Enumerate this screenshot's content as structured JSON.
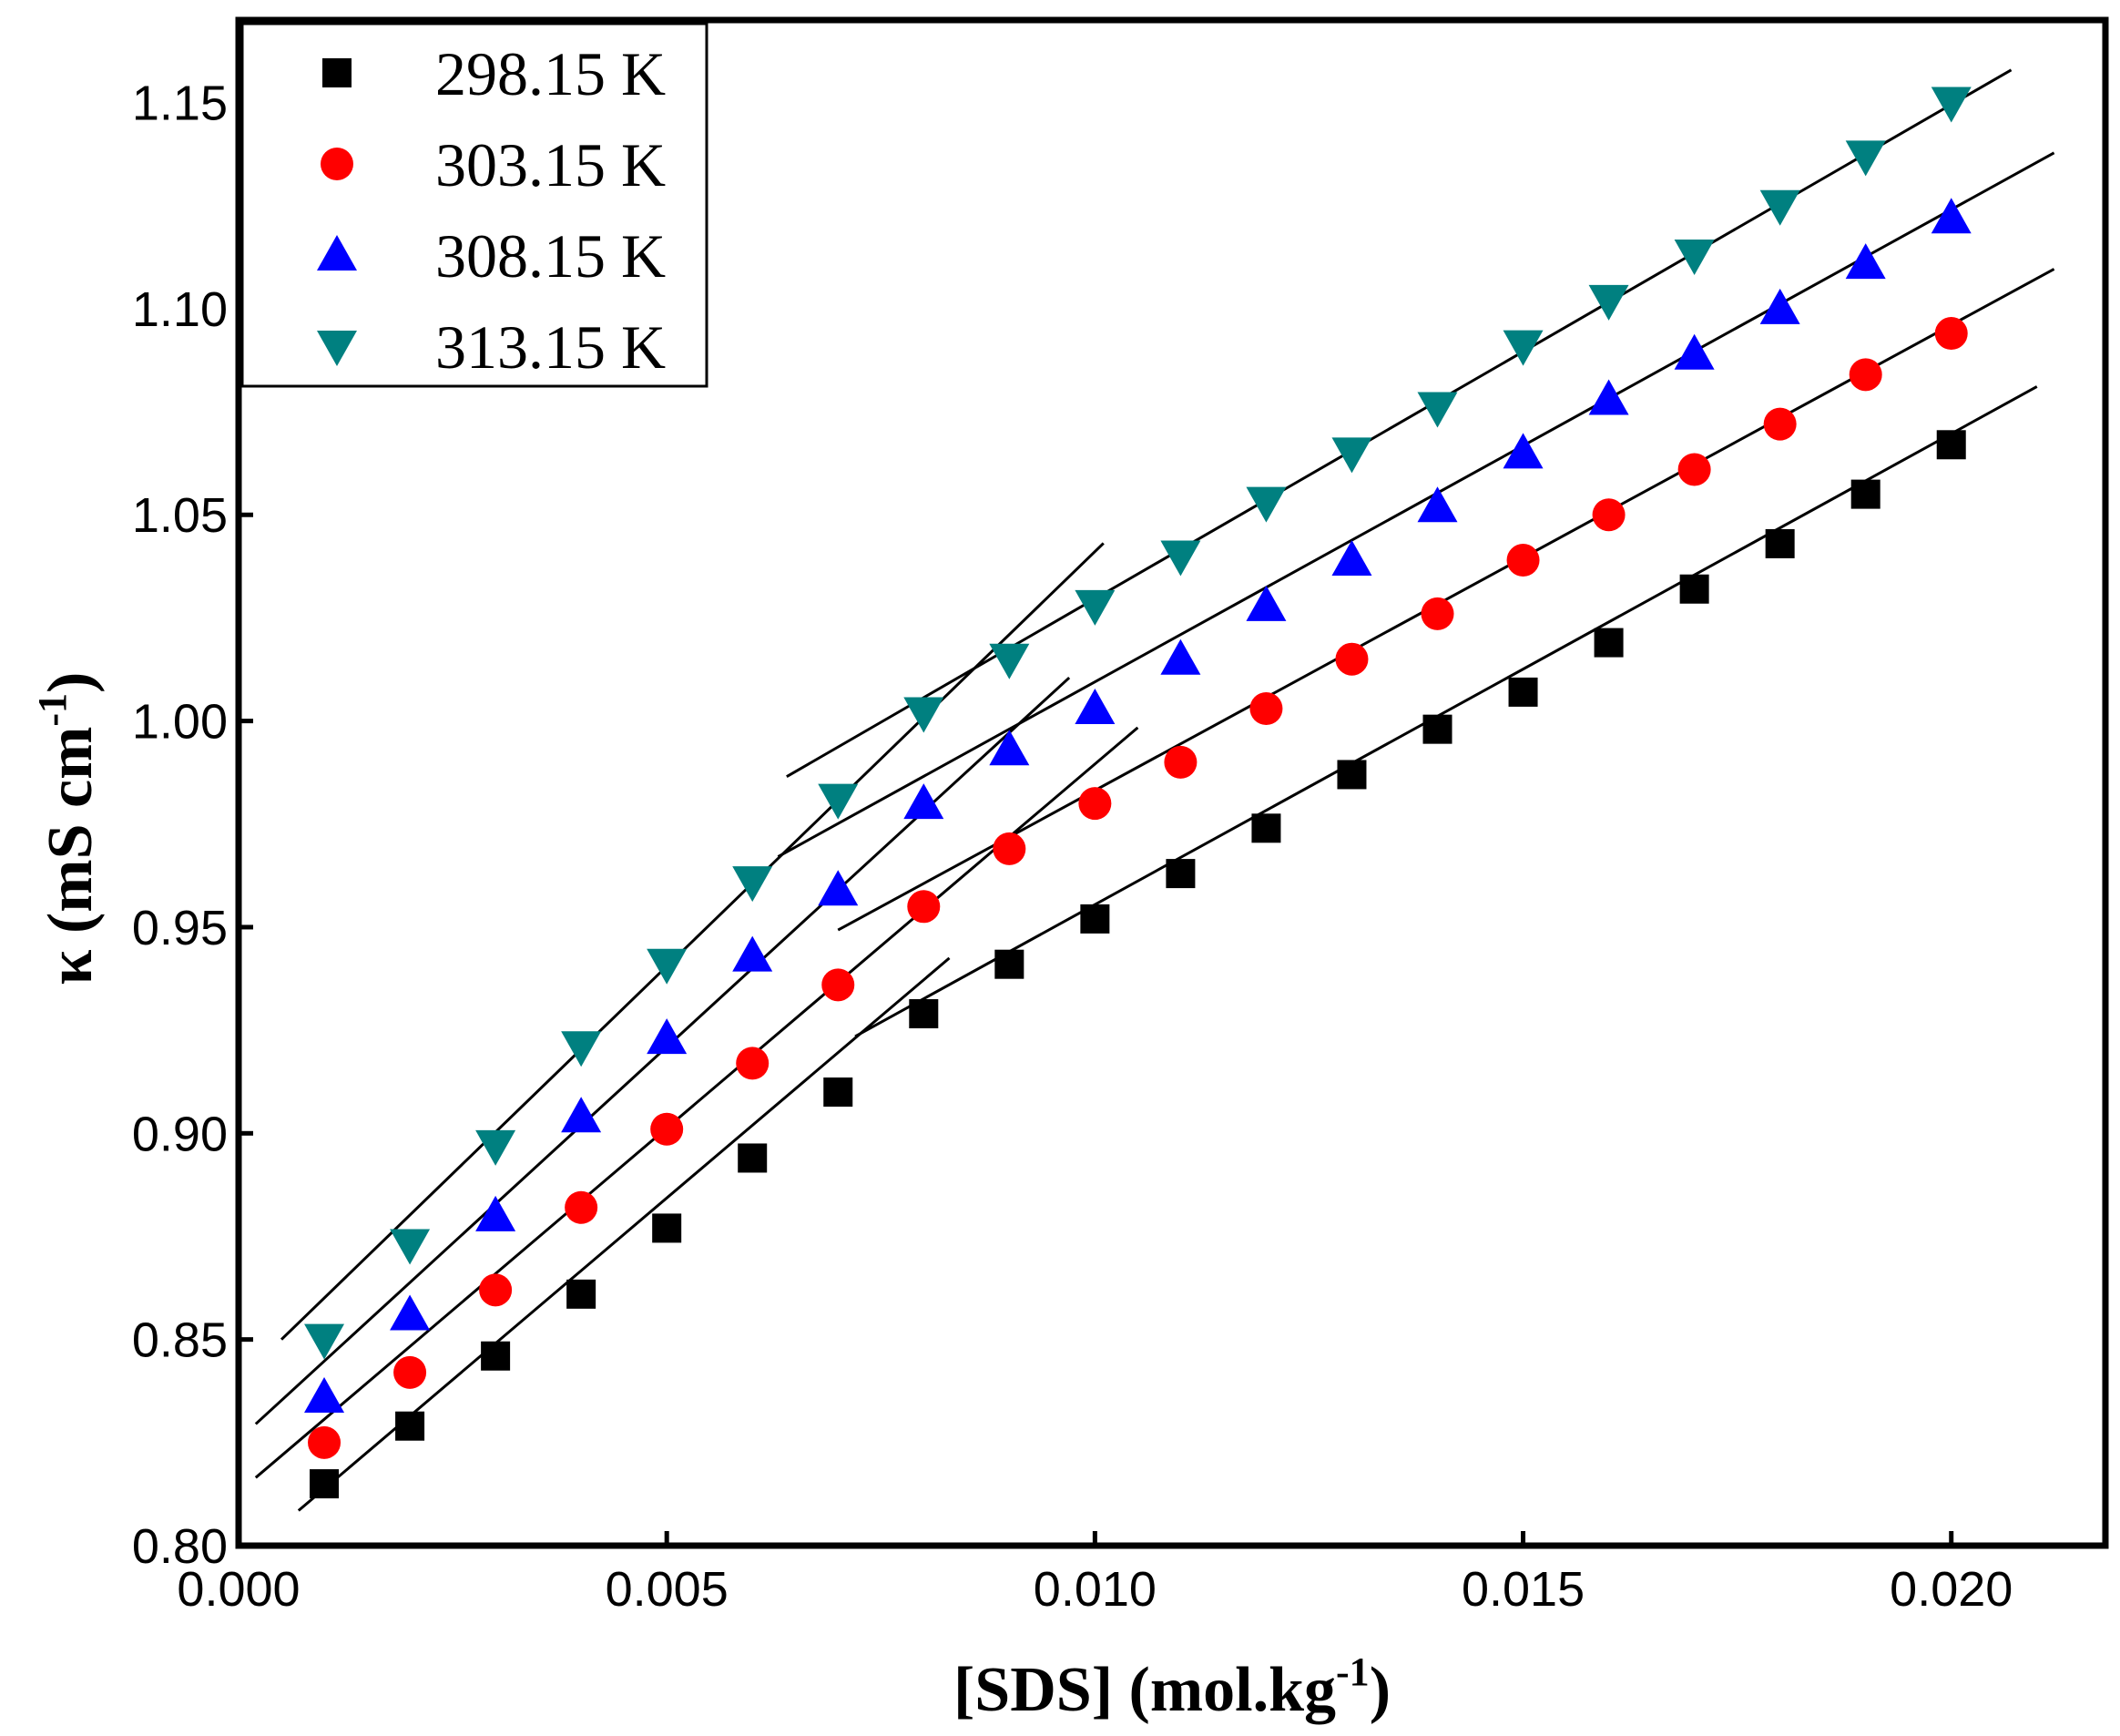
{
  "chart_data": {
    "type": "scatter",
    "title": "",
    "xlabel": "[SDS] (mol.kg",
    "xlabel_sup": "-1",
    "xlabel_close": ")",
    "ylabel": "κ (mS cm",
    "ylabel_sup": "-1",
    "ylabel_close": ")",
    "xlim": [
      0.0,
      0.0218
    ],
    "ylim": [
      0.8,
      1.17
    ],
    "xticks": [
      0.0,
      0.005,
      0.01,
      0.015,
      0.02
    ],
    "xtick_labels": [
      "0.000",
      "0.005",
      "0.010",
      "0.015",
      "0.020"
    ],
    "yticks": [
      0.8,
      0.85,
      0.9,
      0.95,
      1.0,
      1.05,
      1.1,
      1.15
    ],
    "ytick_labels": [
      "0.80",
      "0.85",
      "0.90",
      "0.95",
      "1.00",
      "1.05",
      "1.10",
      "1.15"
    ],
    "grid": false,
    "legend_position": "top-left",
    "x": [
      0.001,
      0.002,
      0.003,
      0.004,
      0.005,
      0.006,
      0.007,
      0.008,
      0.009,
      0.01,
      0.011,
      0.012,
      0.013,
      0.014,
      0.015,
      0.016,
      0.017,
      0.018,
      0.019,
      0.02
    ],
    "series": [
      {
        "name": "298.15 K",
        "marker": "square",
        "color": "#000000",
        "values": [
          0.815,
          0.829,
          0.846,
          0.861,
          0.877,
          0.894,
          0.91,
          0.929,
          0.941,
          0.952,
          0.963,
          0.974,
          0.987,
          0.998,
          1.007,
          1.019,
          1.032,
          1.043,
          1.055,
          1.067
        ],
        "fit_lines": [
          {
            "x": [
              0.0007,
              0.0083
            ],
            "y": [
              0.8085,
              0.9425
            ]
          },
          {
            "x": [
              0.0072,
              0.021
            ],
            "y": [
              0.9235,
              1.0811
            ]
          }
        ]
      },
      {
        "name": "303.15 K",
        "marker": "circle",
        "color": "#ff0000",
        "values": [
          0.825,
          0.842,
          0.862,
          0.882,
          0.901,
          0.917,
          0.936,
          0.955,
          0.969,
          0.98,
          0.99,
          1.003,
          1.015,
          1.026,
          1.039,
          1.05,
          1.061,
          1.072,
          1.084,
          1.094
        ],
        "fit_lines": [
          {
            "x": [
              0.0002,
              0.0105
            ],
            "y": [
              0.8165,
              0.9984
            ]
          },
          {
            "x": [
              0.007,
              0.0212
            ],
            "y": [
              0.9493,
              1.1096
            ]
          }
        ]
      },
      {
        "name": "308.15 K",
        "marker": "triangle-up",
        "color": "#0000ff",
        "values": [
          0.836,
          0.856,
          0.88,
          0.904,
          0.923,
          0.943,
          0.959,
          0.98,
          0.993,
          1.003,
          1.015,
          1.028,
          1.039,
          1.052,
          1.065,
          1.078,
          1.089,
          1.1,
          1.111,
          1.122
        ],
        "fit_lines": [
          {
            "x": [
              0.0002,
              0.0097
            ],
            "y": [
              0.8295,
              1.0105
            ]
          },
          {
            "x": [
              0.0063,
              0.0212
            ],
            "y": [
              0.9671,
              1.1378
            ]
          }
        ]
      },
      {
        "name": "313.15 K",
        "marker": "triangle-down",
        "color": "#008080",
        "values": [
          0.85,
          0.873,
          0.897,
          0.921,
          0.941,
          0.961,
          0.981,
          1.002,
          1.015,
          1.028,
          1.04,
          1.053,
          1.065,
          1.076,
          1.091,
          1.102,
          1.113,
          1.125,
          1.137,
          1.15
        ],
        "fit_lines": [
          {
            "x": [
              0.0005,
              0.0101
            ],
            "y": [
              0.85,
              1.0431
            ]
          },
          {
            "x": [
              0.0064,
              0.0207
            ],
            "y": [
              0.9865,
              1.1579
            ]
          }
        ]
      }
    ]
  }
}
